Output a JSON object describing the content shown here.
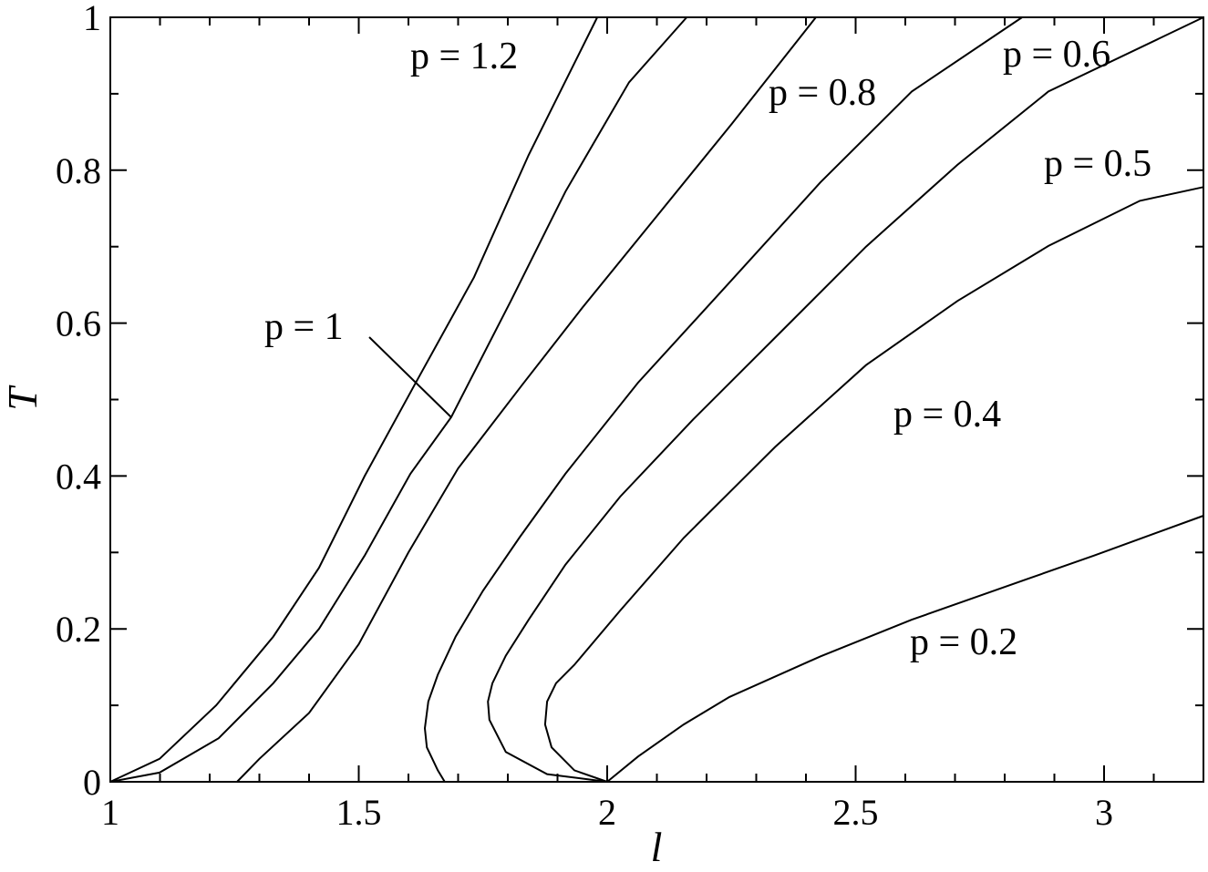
{
  "chart_data": {
    "type": "line",
    "xlabel": "l",
    "ylabel": "T",
    "xlim": [
      1,
      3.2
    ],
    "ylim": [
      0,
      1
    ],
    "xticks": [
      1,
      1.5,
      2,
      2.5,
      3
    ],
    "yticks": [
      0,
      0.2,
      0.4,
      0.6,
      0.8,
      1
    ],
    "xminorticks": [
      1.1,
      1.2,
      1.3,
      1.4,
      1.6,
      1.7,
      1.8,
      1.9,
      2.1,
      2.2,
      2.3,
      2.4,
      2.6,
      2.7,
      2.8,
      2.9,
      3.1
    ],
    "yminorticks": [
      0.1,
      0.3,
      0.5,
      0.7,
      0.9
    ],
    "series": [
      {
        "name": "p = 1.2",
        "color": "#000000",
        "x": [
          1,
          1.099,
          1.213,
          1.328,
          1.42,
          1.512,
          1.613,
          1.732,
          1.842,
          1.98
        ],
        "values": [
          0,
          0.03,
          0.1,
          0.19,
          0.28,
          0.4,
          0.52,
          0.66,
          0.82,
          1
        ]
      },
      {
        "name": "p = 1",
        "color": "#000000",
        "x": [
          1,
          1.099,
          1.218,
          1.328,
          1.42,
          1.512,
          1.604,
          1.686,
          1.806,
          1.916,
          2.044,
          2.16
        ],
        "values": [
          0,
          0.012,
          0.057,
          0.129,
          0.2,
          0.296,
          0.403,
          0.477,
          0.629,
          0.772,
          0.915,
          1
        ]
      },
      {
        "name": "p = 0.8",
        "color": "#000000",
        "x": [
          1.255,
          1.3,
          1.4,
          1.5,
          1.6,
          1.7,
          1.83,
          1.95,
          2.1,
          2.25,
          2.42
        ],
        "values": [
          0,
          0.03,
          0.09,
          0.18,
          0.3,
          0.41,
          0.52,
          0.62,
          0.74,
          0.86,
          1
        ]
      },
      {
        "name": "p = 0.6",
        "color": "#000000",
        "x": [
          1.673,
          1.659,
          1.637,
          1.633,
          1.64,
          1.659,
          1.695,
          1.75,
          1.824,
          1.916,
          2.062,
          2.246,
          2.429,
          2.613,
          2.835
        ],
        "values": [
          0,
          0.015,
          0.045,
          0.07,
          0.105,
          0.14,
          0.19,
          0.25,
          0.32,
          0.403,
          0.522,
          0.653,
          0.784,
          0.903,
          1
        ]
      },
      {
        "name": "p = 0.5",
        "color": "#000000",
        "x": [
          2,
          1.879,
          1.796,
          1.763,
          1.76,
          1.769,
          1.796,
          1.842,
          1.916,
          2.026,
          2.173,
          2.338,
          2.521,
          2.705,
          2.888,
          3.2
        ],
        "values": [
          0,
          0.01,
          0.039,
          0.081,
          0.105,
          0.129,
          0.165,
          0.212,
          0.284,
          0.373,
          0.474,
          0.581,
          0.7,
          0.807,
          0.903,
          1
        ]
      },
      {
        "name": "p = 0.4",
        "color": "#000000",
        "x": [
          2,
          1.934,
          1.888,
          1.875,
          1.879,
          1.897,
          1.934,
          2.026,
          2.154,
          2.338,
          2.521,
          2.705,
          2.888,
          3.072,
          3.2
        ],
        "values": [
          0,
          0.015,
          0.045,
          0.075,
          0.105,
          0.129,
          0.153,
          0.224,
          0.319,
          0.438,
          0.545,
          0.629,
          0.701,
          0.76,
          0.778
        ]
      },
      {
        "name": "p = 0.2",
        "color": "#000000",
        "x": [
          2,
          2.062,
          2.154,
          2.246,
          2.429,
          2.613,
          2.796,
          2.98,
          3.2
        ],
        "values": [
          0,
          0.033,
          0.075,
          0.111,
          0.164,
          0.212,
          0.254,
          0.296,
          0.348
        ]
      }
    ]
  }
}
